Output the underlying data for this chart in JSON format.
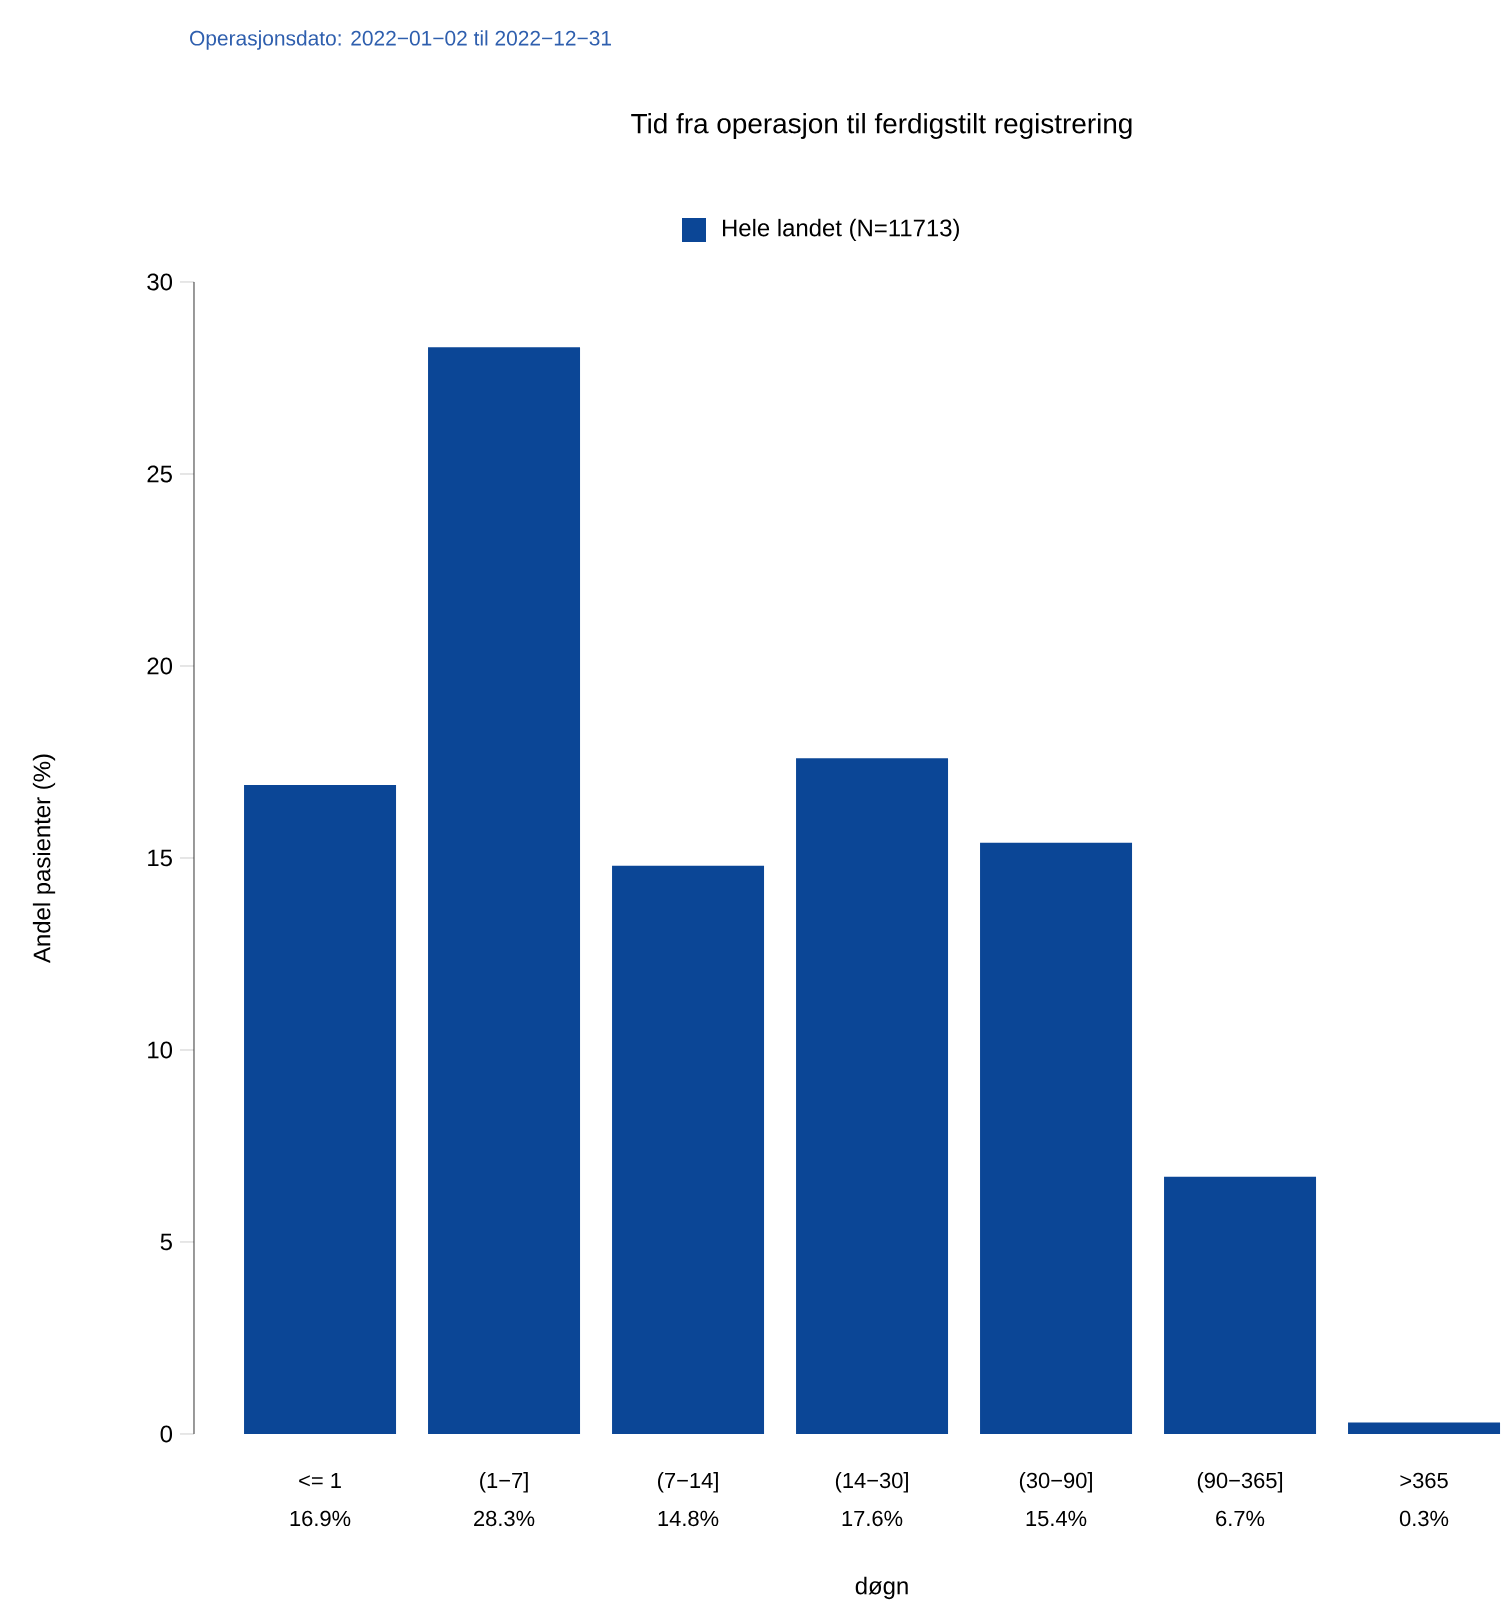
{
  "chart_data": {
    "type": "bar",
    "title": "Tid fra operasjon til ferdigstilt registrering",
    "subtitle": "Operasjonsdato: 2022−01−02 til 2022−12−31",
    "xlabel": "døgn",
    "ylabel": "Andel pasienter (%)",
    "categories": [
      "<= 1",
      "(1−7]",
      "(7−14]",
      "(14−30]",
      "(30−90]",
      "(90−365]",
      ">365"
    ],
    "series": [
      {
        "name": "Hele landet (N=11713)",
        "color": "#0b4696",
        "values": [
          16.9,
          28.3,
          14.8,
          17.6,
          15.4,
          6.7,
          0.3
        ],
        "value_labels": [
          "16.9%",
          "28.3%",
          "14.8%",
          "17.6%",
          "15.4%",
          "6.7%",
          "0.3%"
        ]
      }
    ],
    "ylim": [
      0,
      30
    ],
    "yticks": [
      0,
      5,
      10,
      15,
      20,
      25,
      30
    ],
    "legend": "top",
    "grid": false
  }
}
